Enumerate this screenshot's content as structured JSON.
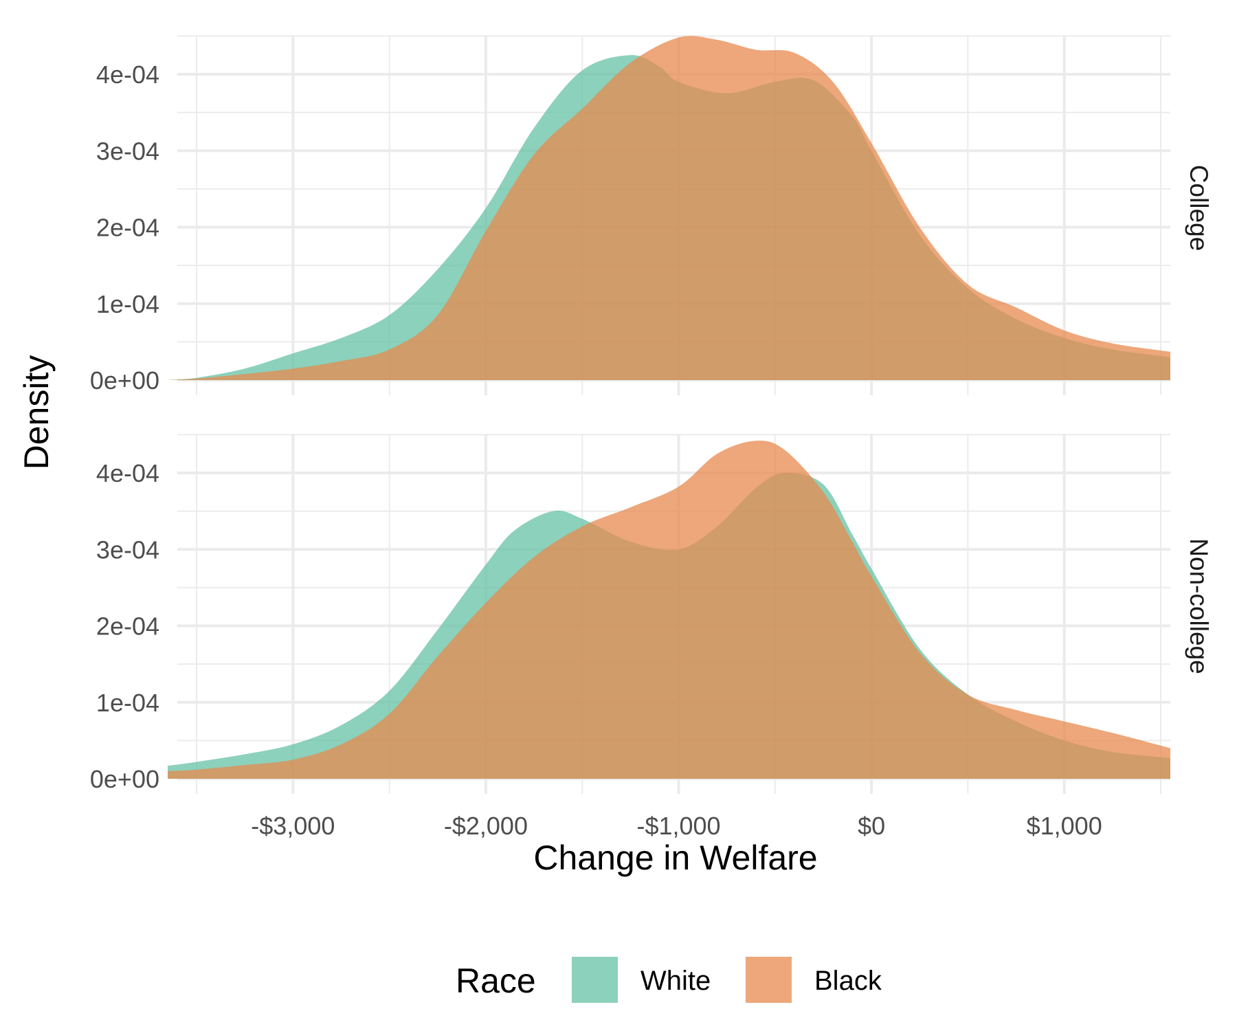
{
  "chart_data": {
    "type": "area",
    "subtype": "faceted-density",
    "xlabel": "Change in Welfare",
    "ylabel": "Density",
    "xlim": [
      -3600,
      1550
    ],
    "ylim": [
      0,
      0.00045
    ],
    "x_ticks": [
      -3000,
      -2000,
      -1000,
      0,
      1000
    ],
    "x_tick_labels": [
      "-$3,000",
      "-$2,000",
      "-$1,000",
      "$0",
      "$1,000"
    ],
    "y_ticks": [
      0,
      0.0001,
      0.0002,
      0.0003,
      0.0004
    ],
    "y_tick_labels": [
      "0e+00",
      "1e-04",
      "2e-04",
      "3e-04",
      "4e-04"
    ],
    "grid": true,
    "legend": {
      "title": "Race",
      "position": "bottom",
      "entries": [
        {
          "label": "White",
          "color": "#66c2a5"
        },
        {
          "label": "Black",
          "color": "#e7894d"
        }
      ]
    },
    "facets": [
      {
        "label": "College",
        "series": [
          {
            "name": "White",
            "color": "#66c2a5",
            "x": [
              -3650,
              -3500,
              -3250,
              -3000,
              -2750,
              -2500,
              -2250,
              -2000,
              -1750,
              -1500,
              -1250,
              -1100,
              -1000,
              -750,
              -500,
              -300,
              -100,
              0,
              250,
              500,
              750,
              1000,
              1250,
              1550
            ],
            "y": [
              0.0,
              3e-06,
              1.5e-05,
              3.5e-05,
              5.5e-05,
              8.5e-05,
              0.000145,
              0.000225,
              0.00033,
              0.000405,
              0.000425,
              0.00041,
              0.00039,
              0.000375,
              0.00039,
              0.000392,
              0.000345,
              0.0003,
              0.00019,
              0.00012,
              8e-05,
              5.5e-05,
              4e-05,
              3e-05
            ]
          },
          {
            "name": "Black",
            "color": "#e7894d",
            "x": [
              -3650,
              -3500,
              -3250,
              -3000,
              -2750,
              -2500,
              -2250,
              -2000,
              -1750,
              -1500,
              -1250,
              -1000,
              -800,
              -600,
              -400,
              -200,
              0,
              250,
              500,
              750,
              1000,
              1250,
              1550
            ],
            "y": [
              0.0,
              2e-06,
              8e-06,
              1.5e-05,
              2.5e-05,
              4e-05,
              8.5e-05,
              0.000195,
              0.000295,
              0.000355,
              0.000415,
              0.000448,
              0.000445,
              0.000432,
              0.000428,
              0.00039,
              0.00031,
              0.0002,
              0.000125,
              9.5e-05,
              6.5e-05,
              4.8e-05,
              3.7e-05
            ]
          }
        ]
      },
      {
        "label": "Non-college",
        "series": [
          {
            "name": "White",
            "color": "#66c2a5",
            "x": [
              -3650,
              -3500,
              -3250,
              -3000,
              -2750,
              -2500,
              -2250,
              -2000,
              -1850,
              -1650,
              -1500,
              -1250,
              -1000,
              -800,
              -600,
              -450,
              -250,
              -100,
              0,
              250,
              500,
              750,
              1000,
              1250,
              1550
            ],
            "y": [
              1.7e-05,
              2.2e-05,
              3.2e-05,
              4.5e-05,
              7e-05,
              0.000115,
              0.000195,
              0.00028,
              0.000325,
              0.00035,
              0.00034,
              0.00031,
              0.0003,
              0.00033,
              0.00038,
              0.0004,
              0.000385,
              0.00032,
              0.000275,
              0.00017,
              0.00011,
              7.5e-05,
              5e-05,
              3.5e-05,
              2.7e-05
            ]
          },
          {
            "name": "Black",
            "color": "#e7894d",
            "x": [
              -3650,
              -3500,
              -3250,
              -3000,
              -2750,
              -2500,
              -2250,
              -2000,
              -1750,
              -1500,
              -1250,
              -1000,
              -800,
              -600,
              -450,
              -250,
              -100,
              0,
              250,
              500,
              750,
              1000,
              1250,
              1550
            ],
            "y": [
              1e-05,
              1.2e-05,
              1.8e-05,
              2.5e-05,
              4.5e-05,
              8.5e-05,
              0.00016,
              0.00023,
              0.00029,
              0.00033,
              0.000355,
              0.000382,
              0.000425,
              0.000442,
              0.00043,
              0.000375,
              0.00031,
              0.000265,
              0.000165,
              0.00011,
              9e-05,
              7.5e-05,
              6e-05,
              4e-05
            ]
          }
        ]
      }
    ]
  }
}
